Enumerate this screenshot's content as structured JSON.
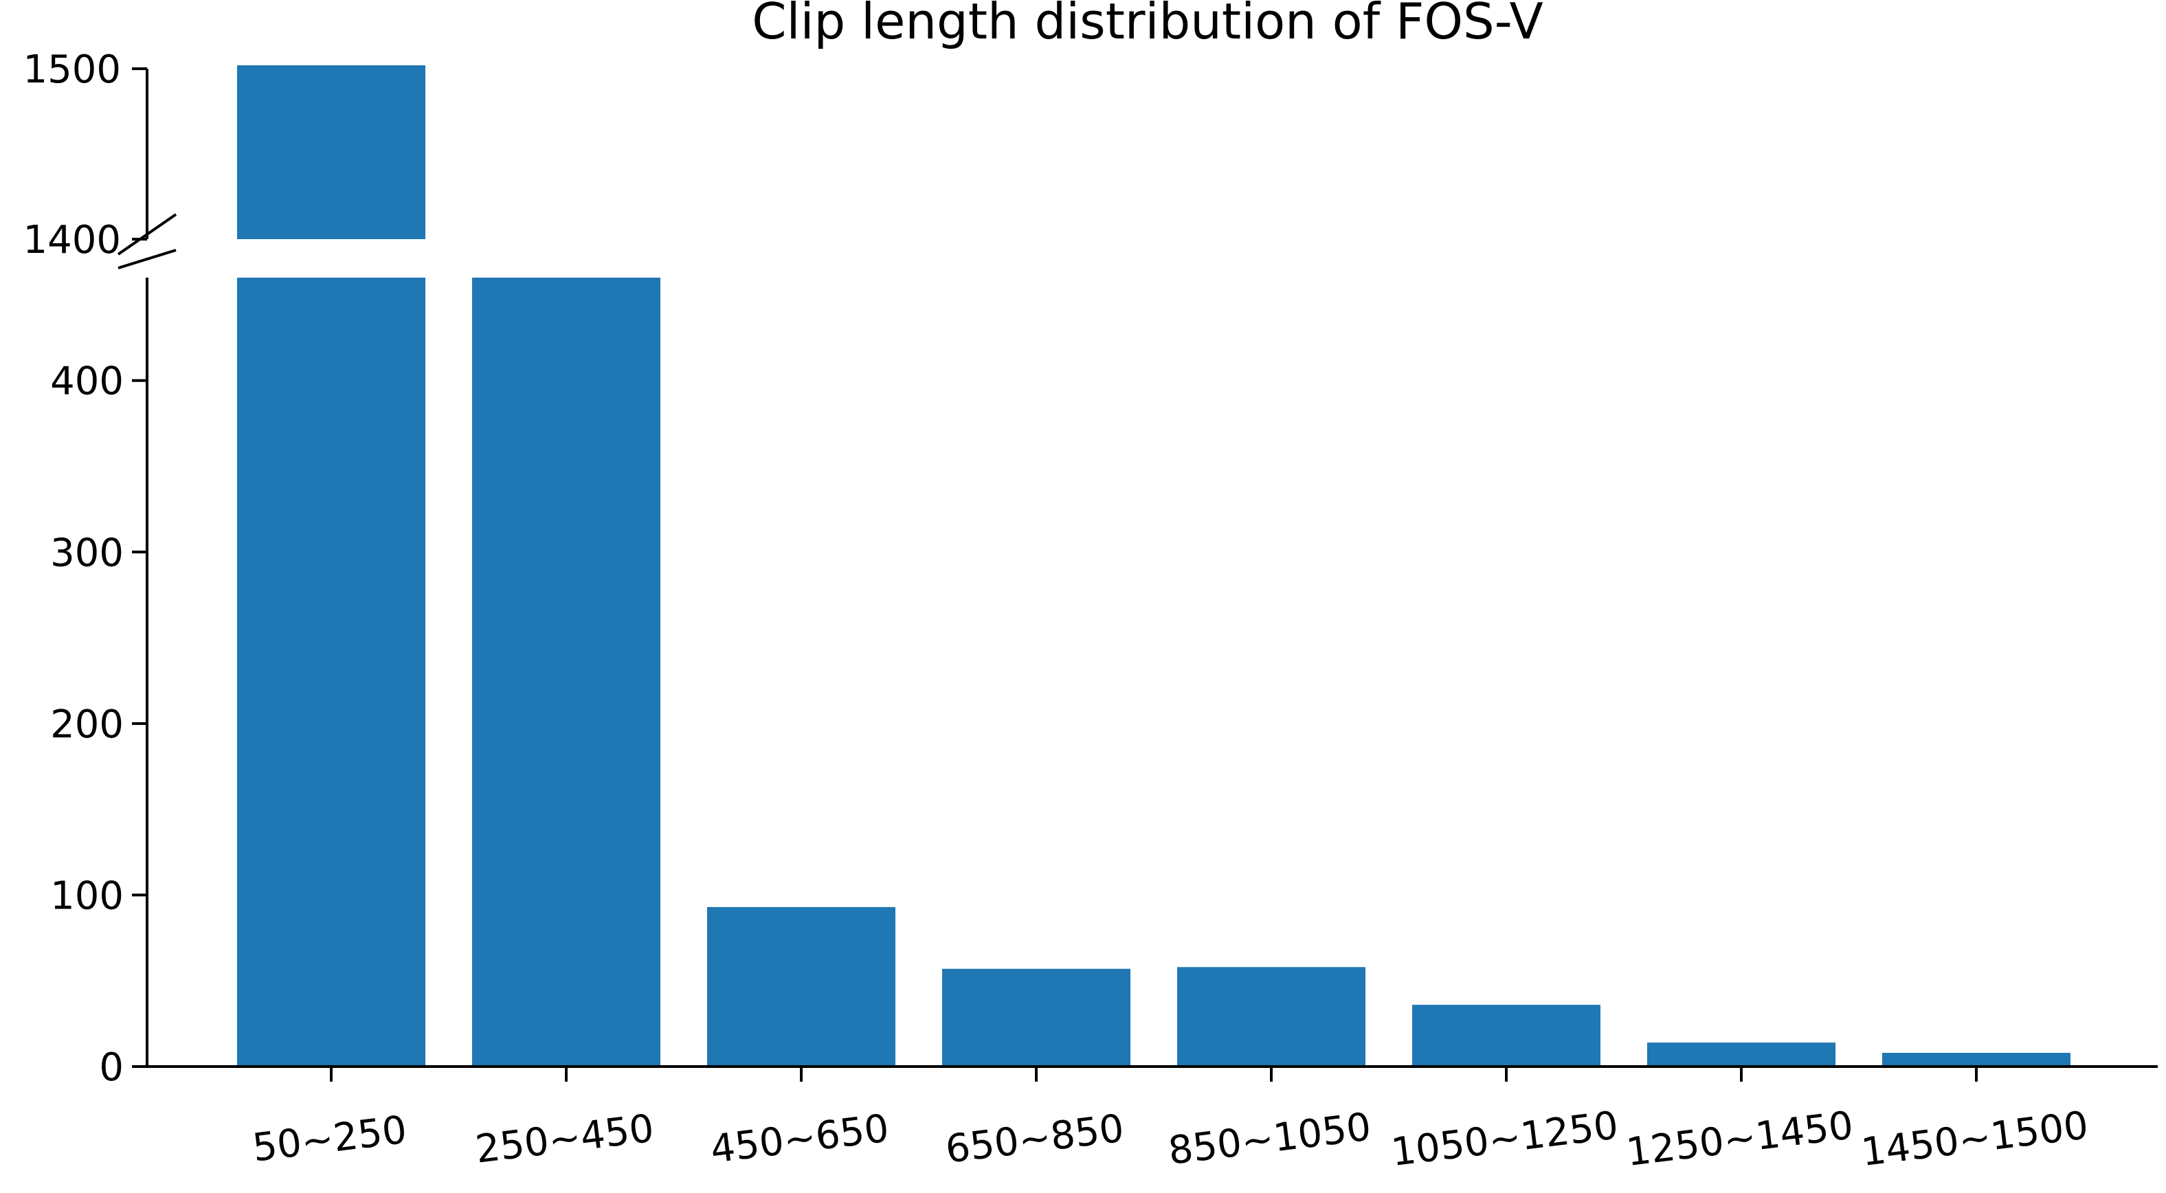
{
  "chart_data": {
    "type": "bar",
    "title": "Clip length distribution of FOS-V",
    "xlabel": "",
    "ylabel": "",
    "categories": [
      "50~250",
      "250~450",
      "450~650",
      "650~850",
      "850~1050",
      "1050~1250",
      "1250~1450",
      "1450~1500"
    ],
    "values": [
      1502,
      460,
      93,
      57,
      58,
      36,
      14,
      8
    ],
    "color": "#1f77b4",
    "broken_y_axis": true,
    "lower_ylim": [
      0,
      460
    ],
    "upper_ylim": [
      1400,
      1500
    ],
    "lower_yticks": [
      0,
      100,
      200,
      300,
      400
    ],
    "upper_yticks": [
      1400,
      1500
    ],
    "lower_ytick_labels": [
      "0",
      "100",
      "200",
      "300",
      "400"
    ],
    "upper_ytick_labels": [
      "1400",
      "1500"
    ],
    "xtick_rotation_deg": -7,
    "grid": false,
    "legend": "none"
  }
}
